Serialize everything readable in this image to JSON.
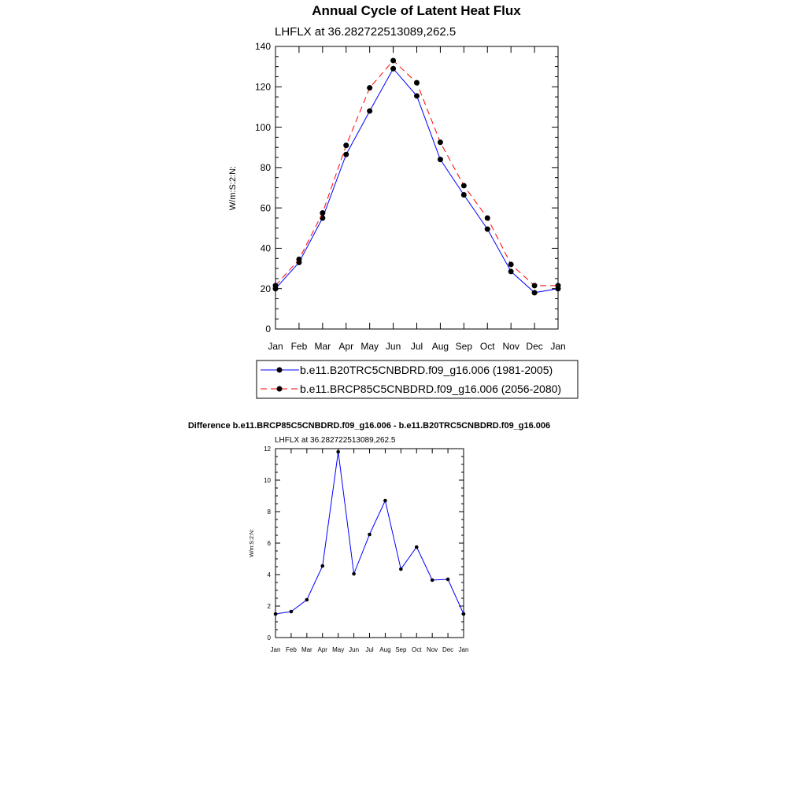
{
  "chart_data": [
    {
      "type": "line",
      "title": "Annual Cycle of Latent Heat Flux",
      "subtitle": "LHFLX at 36.282722513089,262.5",
      "xlabel": "",
      "ylabel": "W/m:S:2:N:",
      "categories": [
        "Jan",
        "Feb",
        "Mar",
        "Apr",
        "May",
        "Jun",
        "Jul",
        "Aug",
        "Sep",
        "Oct",
        "Nov",
        "Dec",
        "Jan"
      ],
      "yticks": [
        0,
        20,
        40,
        60,
        80,
        100,
        120,
        140
      ],
      "ylim": [
        0,
        140
      ],
      "legend": "below",
      "grid": false,
      "series": [
        {
          "name": "b.e11.B20TRC5CNBDRD.f09_g16.006 (1981-2005)",
          "color": "#0000ff",
          "dash": "solid",
          "values": [
            20.0,
            33.0,
            55.0,
            86.5,
            108.0,
            129.0,
            115.5,
            84.0,
            66.5,
            49.5,
            28.5,
            18.0,
            20.0
          ]
        },
        {
          "name": "b.e11.BRCP85C5CNBDRD.f09_g16.006 (2056-2080)",
          "color": "#ff0000",
          "dash": "dashed",
          "values": [
            21.5,
            34.5,
            57.5,
            91.0,
            119.5,
            133.0,
            122.0,
            92.5,
            71.0,
            55.0,
            32.0,
            21.5,
            21.5
          ]
        }
      ]
    },
    {
      "type": "line",
      "title": "Difference b.e11.BRCP85C5CNBDRD.f09_g16.006 - b.e11.B20TRC5CNBDRD.f09_g16.006",
      "subtitle": "LHFLX at 36.282722513089,262.5",
      "xlabel": "",
      "ylabel": "W/m:S:2:N:",
      "categories": [
        "Jan",
        "Feb",
        "Mar",
        "Apr",
        "May",
        "Jun",
        "Jul",
        "Aug",
        "Sep",
        "Oct",
        "Nov",
        "Dec",
        "Jan"
      ],
      "yticks": [
        0,
        2,
        4,
        6,
        8,
        10,
        12
      ],
      "ylim": [
        0,
        12
      ],
      "grid": false,
      "series": [
        {
          "color": "#0000ff",
          "dash": "solid",
          "values": [
            1.5,
            1.65,
            2.4,
            4.55,
            11.8,
            4.05,
            6.55,
            8.7,
            4.35,
            5.75,
            3.65,
            3.7,
            1.5
          ]
        }
      ]
    }
  ]
}
